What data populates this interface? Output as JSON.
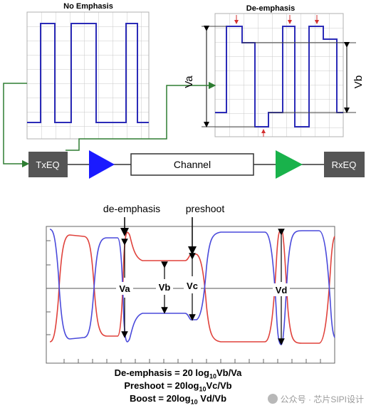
{
  "top": {
    "left_title": "No Emphasis",
    "right_title": "De-emphasis",
    "va_label": "Va",
    "vb_label": "Vb"
  },
  "chain": {
    "txeq": "TxEQ",
    "channel": "Channel",
    "rxeq": "RxEQ"
  },
  "eye": {
    "deemphasis": "de-emphasis",
    "preshoot": "preshoot",
    "va": "Va",
    "vb": "Vb",
    "vc": "Vc",
    "vd": "Vd"
  },
  "formulas": {
    "deemph_pre": "De-emphasis = 20 log",
    "deemph_sub": "10",
    "deemph_post": "Vb/Va",
    "preshoot_pre": "Preshoot = 20log",
    "preshoot_sub": "10",
    "preshoot_post": "Vc/Vb",
    "boost_pre": "Boost = 20log",
    "boost_sub": "10",
    "boost_post": " Vd/Vb"
  },
  "watermark": "公众号 · 芯片SIPI设计",
  "colors": {
    "trace_blue": "#2b2bb8",
    "trace_red": "#e0423c",
    "tri_blue": "#1a1aff",
    "tri_green": "#19b24b",
    "box_dark": "#555555",
    "arrow_green": "#2e7d32"
  }
}
